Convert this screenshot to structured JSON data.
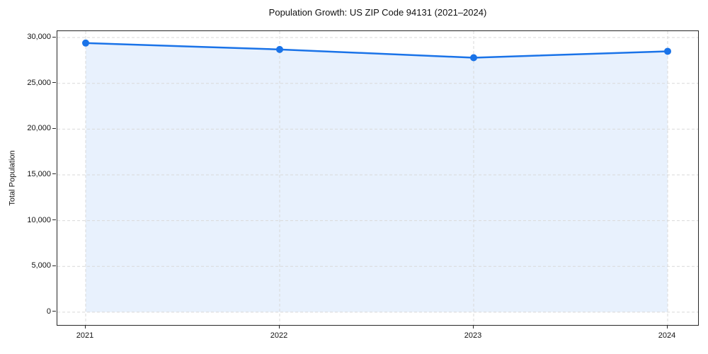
{
  "chart_data": {
    "type": "area",
    "title": "Population Growth: US ZIP Code 94131 (2021–2024)",
    "xlabel": "",
    "ylabel": "Total Population",
    "categories": [
      "2021",
      "2022",
      "2023",
      "2024"
    ],
    "series": [
      {
        "name": "Total Population",
        "values": [
          29400,
          28700,
          27800,
          28500
        ]
      }
    ],
    "baseline": 0,
    "ylim": [
      -1400,
      30700
    ],
    "grid": true,
    "grid_style": "dashed",
    "legend": "none",
    "yticks": [
      {
        "value": 0,
        "label": "0"
      },
      {
        "value": 5000,
        "label": "5,000"
      },
      {
        "value": 10000,
        "label": "10,000"
      },
      {
        "value": 15000,
        "label": "15,000"
      },
      {
        "value": 20000,
        "label": "20,000"
      },
      {
        "value": 25000,
        "label": "25,000"
      },
      {
        "value": 30000,
        "label": "30,000"
      }
    ],
    "colors": {
      "line": "#1a73e8",
      "marker": "#1a73e8",
      "fill": "rgba(26,115,232,0.10)",
      "grid": "#d9d9d9",
      "spine": "#262626",
      "text": "#111111",
      "background": "#ffffff"
    }
  }
}
